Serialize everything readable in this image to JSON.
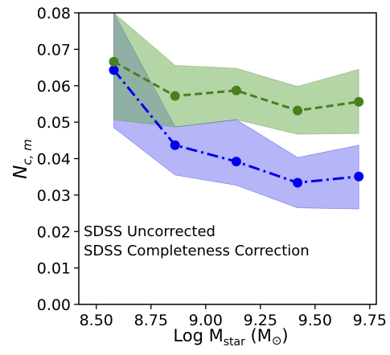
{
  "chart_data": {
    "type": "line",
    "xlabel_main": "Log M",
    "xlabel_sub": "star",
    "xlabel_unit_open": " (M",
    "xlabel_unit_symbol": "⊙",
    "xlabel_unit_close": ")",
    "ylabel_main": "N",
    "ylabel_sub": "c, m",
    "xlim": [
      8.42,
      9.78
    ],
    "ylim": [
      0.0,
      0.08
    ],
    "xticks": [
      8.5,
      8.75,
      9.0,
      9.25,
      9.5,
      9.75
    ],
    "xtick_labels": [
      "8.50",
      "8.75",
      "9.00",
      "9.25",
      "9.50",
      "9.75"
    ],
    "yticks": [
      0.0,
      0.01,
      0.02,
      0.03,
      0.04,
      0.05,
      0.06,
      0.07,
      0.08
    ],
    "ytick_labels": [
      "0.00",
      "0.01",
      "0.02",
      "0.03",
      "0.04",
      "0.05",
      "0.06",
      "0.07",
      "0.08"
    ],
    "legend_position": "lower-left",
    "series": [
      {
        "name": "SDSS Uncorrected",
        "color": "#0000ee",
        "band_color": "#6b6bf0",
        "line_style": "dashdot",
        "x": [
          8.58,
          8.86,
          9.14,
          9.42,
          9.7
        ],
        "y": [
          0.0643,
          0.0437,
          0.0392,
          0.0334,
          0.0351
        ],
        "lower": [
          0.0485,
          0.0355,
          0.0327,
          0.0265,
          0.0262
        ],
        "upper": [
          0.08,
          0.0487,
          0.0507,
          0.0403,
          0.0437
        ]
      },
      {
        "name": "SDSS Completeness Correction",
        "color": "#4a7f1e",
        "band_color": "#6aab4e",
        "line_style": "dashed",
        "x": [
          8.58,
          8.86,
          9.14,
          9.42,
          9.7
        ],
        "y": [
          0.0666,
          0.0572,
          0.0587,
          0.0532,
          0.0556
        ],
        "lower": [
          0.0507,
          0.0487,
          0.0507,
          0.0467,
          0.0469
        ],
        "upper": [
          0.08,
          0.0656,
          0.0648,
          0.0598,
          0.0645
        ]
      }
    ]
  }
}
